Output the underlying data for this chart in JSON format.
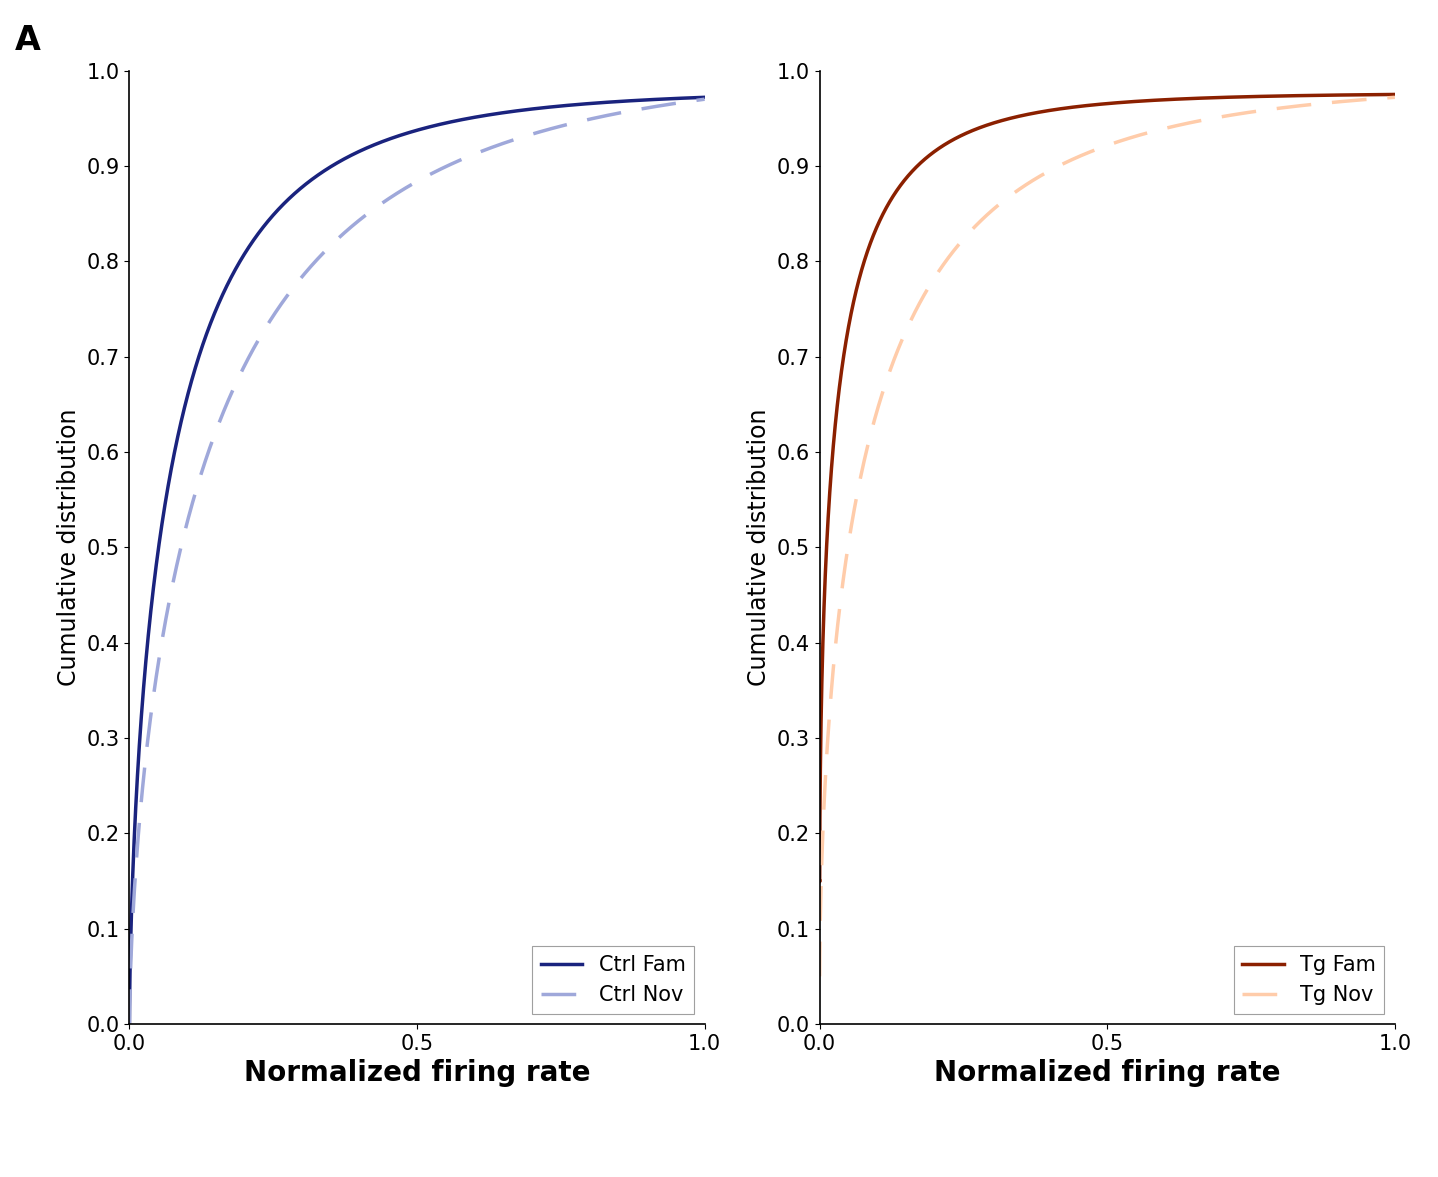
{
  "panel_label": "A",
  "xlabel": "Normalized firing rate",
  "ylabel": "Cumulative distribution",
  "xlim": [
    0,
    1
  ],
  "ylim": [
    0,
    1
  ],
  "xticks": [
    0,
    0.5,
    1
  ],
  "yticks": [
    0,
    0.1,
    0.2,
    0.3,
    0.4,
    0.5,
    0.6,
    0.7,
    0.8,
    0.9,
    1.0
  ],
  "ctrl_fam_color": "#1a237e",
  "ctrl_nov_color": "#9fa8da",
  "tg_fam_color": "#8b2000",
  "tg_nov_color": "#ffccaa",
  "linewidth": 2.5,
  "legend_ctrl_fam": "Ctrl Fam",
  "legend_ctrl_nov": "Ctrl Nov",
  "legend_tg_fam": "Tg Fam",
  "legend_tg_nov": "Tg Nov",
  "xlabel_fontsize": 20,
  "ylabel_fontsize": 17,
  "tick_fontsize": 15,
  "legend_fontsize": 15,
  "panel_label_fontsize": 24,
  "background_color": "#ffffff"
}
